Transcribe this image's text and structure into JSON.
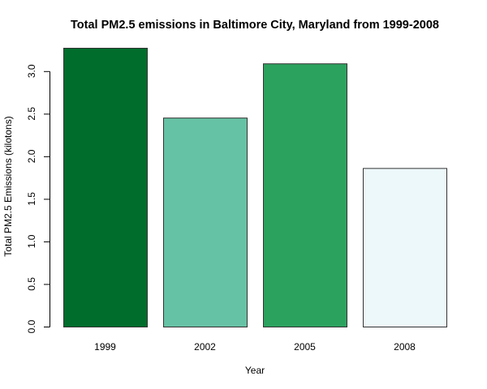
{
  "chart_data": {
    "type": "bar",
    "title": "Total PM2.5 emissions in Baltimore City, Maryland from 1999-2008",
    "xlabel": "Year",
    "ylabel": "Total PM2.5 Emissions (kilotons)",
    "categories": [
      "1999",
      "2002",
      "2005",
      "2008"
    ],
    "values": [
      3.274,
      2.454,
      3.091,
      1.862
    ],
    "colors": [
      "#006D2C",
      "#66C2A4",
      "#2CA25F",
      "#EDF8FB"
    ],
    "ylim": [
      0,
      3.274
    ],
    "yticks": [
      0.0,
      0.5,
      1.0,
      1.5,
      2.0,
      2.5,
      3.0
    ],
    "ytick_labels": [
      "0.0",
      "0.5",
      "1.0",
      "1.5",
      "2.0",
      "2.5",
      "3.0"
    ],
    "grid": false,
    "legend": "none"
  }
}
